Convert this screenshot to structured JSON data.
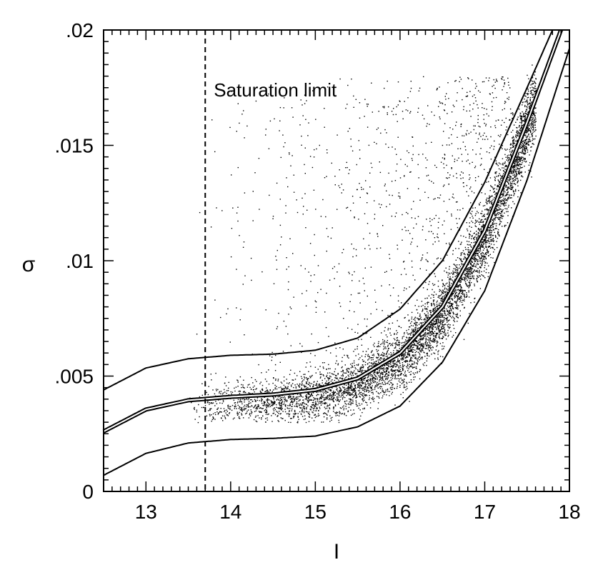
{
  "chart_data": {
    "type": "scatter",
    "title": "",
    "xlabel": "I",
    "ylabel": "σ",
    "xlim": [
      12.5,
      18
    ],
    "ylim": [
      0,
      0.02
    ],
    "xticks": [
      {
        "value": 13,
        "label": "13"
      },
      {
        "value": 14,
        "label": "14"
      },
      {
        "value": 15,
        "label": "15"
      },
      {
        "value": 16,
        "label": "16"
      },
      {
        "value": 17,
        "label": "17"
      },
      {
        "value": 18,
        "label": "18"
      }
    ],
    "yticks": [
      {
        "value": 0,
        "label": "0"
      },
      {
        "value": 0.005,
        "label": ".005"
      },
      {
        "value": 0.01,
        "label": ".01"
      },
      {
        "value": 0.015,
        "label": ".015"
      },
      {
        "value": 0.02,
        "label": ".02"
      }
    ],
    "x_minor_step": 0.1,
    "y_minor_step": 0.0005,
    "grid": false,
    "saturation_limit": {
      "x": 13.7,
      "label": "Saturation limit"
    },
    "curves": [
      {
        "role": "upper",
        "points": [
          [
            12.5,
            0.0044
          ],
          [
            13.0,
            0.00535
          ],
          [
            13.5,
            0.00575
          ],
          [
            14.0,
            0.0059
          ],
          [
            14.5,
            0.00595
          ],
          [
            15.0,
            0.00612
          ],
          [
            15.5,
            0.00665
          ],
          [
            16.0,
            0.0079
          ],
          [
            16.5,
            0.01
          ],
          [
            17.0,
            0.0134
          ],
          [
            17.5,
            0.0175
          ],
          [
            17.8,
            0.02
          ]
        ]
      },
      {
        "role": "fit",
        "points": [
          [
            12.5,
            0.0026
          ],
          [
            13.0,
            0.00355
          ],
          [
            13.5,
            0.00395
          ],
          [
            14.0,
            0.0041
          ],
          [
            14.5,
            0.0042
          ],
          [
            15.0,
            0.0044
          ],
          [
            15.5,
            0.0049
          ],
          [
            16.0,
            0.006
          ],
          [
            16.5,
            0.008
          ],
          [
            17.0,
            0.0113
          ],
          [
            17.5,
            0.016
          ],
          [
            17.9,
            0.02
          ]
        ]
      },
      {
        "role": "lower",
        "points": [
          [
            12.5,
            0.0007
          ],
          [
            13.0,
            0.00165
          ],
          [
            13.5,
            0.0021
          ],
          [
            14.0,
            0.00225
          ],
          [
            14.5,
            0.0023
          ],
          [
            15.0,
            0.0024
          ],
          [
            15.5,
            0.0028
          ],
          [
            16.0,
            0.0037
          ],
          [
            16.5,
            0.0056
          ],
          [
            17.0,
            0.0087
          ],
          [
            17.5,
            0.0135
          ],
          [
            18.0,
            0.0192
          ]
        ]
      }
    ],
    "scatter_series": {
      "name": "",
      "approx_count": 14000,
      "x_range": [
        13.5,
        17.6
      ],
      "description_of_distribution": "dense band around fit curve, sparse scatter above"
    }
  }
}
